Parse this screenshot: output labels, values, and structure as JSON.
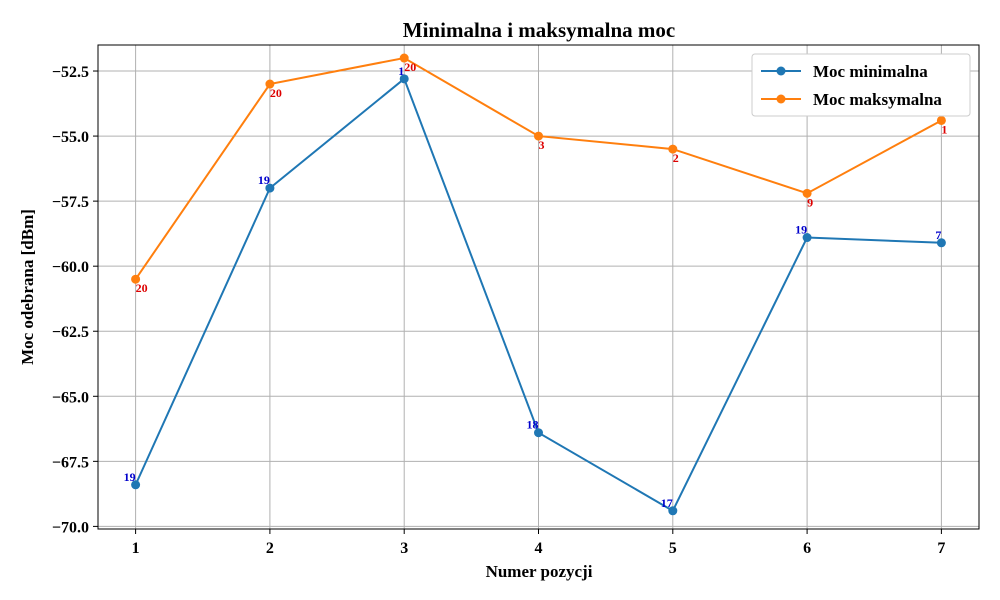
{
  "chart_data": {
    "type": "line",
    "title": "Minimalna i maksymalna moc",
    "xlabel": "Numer pozycji",
    "ylabel": "Moc odebrana [dBm]",
    "x": [
      1,
      2,
      3,
      4,
      5,
      6,
      7
    ],
    "xticks": [
      "1",
      "2",
      "3",
      "4",
      "5",
      "6",
      "7"
    ],
    "yticks": [
      "−52.5",
      "−55.0",
      "−57.5",
      "−60.0",
      "−62.5",
      "−65.0",
      "−67.5",
      "−70.0"
    ],
    "ylim": [
      -70.1,
      -51.5
    ],
    "xlim": [
      0.72,
      7.28
    ],
    "grid": true,
    "legend_position": "top-right",
    "series": [
      {
        "name": "Moc minimalna",
        "color": "#1f77b4",
        "label_color": "#0000cc",
        "values": [
          -68.4,
          -57.0,
          -52.8,
          -66.4,
          -69.4,
          -58.9,
          -59.1
        ],
        "point_labels": [
          "19",
          "19",
          "1",
          "18",
          "17",
          "19",
          "7"
        ]
      },
      {
        "name": "Moc maksymalna",
        "color": "#ff7f0e",
        "label_color": "#dd0000",
        "values": [
          -60.5,
          -53.0,
          -52.0,
          -55.0,
          -55.5,
          -57.2,
          -54.4
        ],
        "point_labels": [
          "20",
          "20",
          "20",
          "3",
          "2",
          "9",
          "1"
        ]
      }
    ]
  }
}
